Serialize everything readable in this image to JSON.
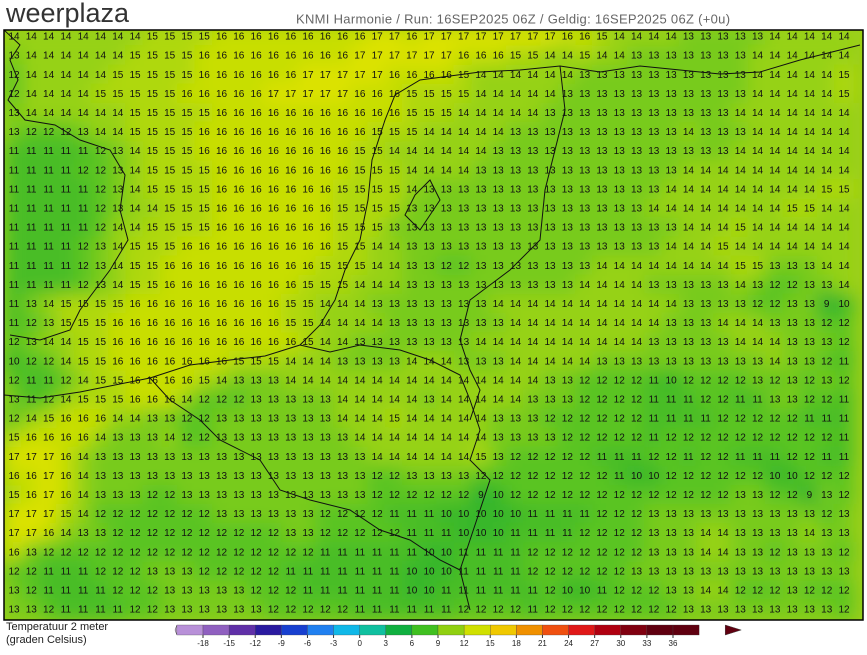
{
  "header": {
    "logo": "weerplaza",
    "info": "KNMI Harmonie / Run: 16SEP2025 06Z / Geldig: 16SEP2025 06Z (+0u)"
  },
  "map": {
    "rows": [
      [
        14,
        14,
        14,
        14,
        14,
        14,
        14,
        14,
        15,
        15,
        15,
        15,
        16,
        16,
        16,
        16,
        16,
        16,
        16,
        16,
        16,
        17,
        17,
        16,
        17,
        17,
        17,
        17,
        17,
        17,
        17,
        17,
        16,
        16,
        15,
        14,
        14,
        14,
        14,
        13,
        13,
        13,
        13,
        13,
        14,
        14,
        14,
        14,
        14
      ],
      [
        13,
        14,
        14,
        14,
        14,
        14,
        14,
        15,
        15,
        15,
        15,
        16,
        16,
        16,
        16,
        16,
        16,
        16,
        16,
        16,
        17,
        17,
        17,
        17,
        17,
        17,
        16,
        16,
        16,
        15,
        15,
        14,
        14,
        15,
        14,
        14,
        13,
        13,
        13,
        13,
        13,
        13,
        13,
        14,
        14,
        14,
        14,
        14,
        14
      ],
      [
        12,
        14,
        14,
        14,
        14,
        14,
        15,
        15,
        15,
        15,
        15,
        16,
        16,
        16,
        16,
        16,
        16,
        17,
        17,
        17,
        17,
        17,
        16,
        16,
        16,
        16,
        15,
        14,
        14,
        14,
        14,
        14,
        14,
        13,
        13,
        13,
        13,
        13,
        13,
        13,
        13,
        13,
        13,
        14,
        14,
        14,
        14,
        14,
        15
      ],
      [
        12,
        14,
        14,
        14,
        14,
        15,
        15,
        15,
        15,
        15,
        16,
        16,
        16,
        16,
        16,
        17,
        17,
        17,
        17,
        17,
        16,
        16,
        16,
        15,
        15,
        15,
        15,
        14,
        14,
        14,
        14,
        14,
        13,
        13,
        13,
        13,
        13,
        13,
        13,
        13,
        13,
        13,
        13,
        14,
        14,
        14,
        14,
        14,
        15
      ],
      [
        13,
        14,
        14,
        14,
        14,
        14,
        14,
        15,
        15,
        15,
        15,
        15,
        16,
        16,
        16,
        16,
        16,
        16,
        16,
        16,
        16,
        16,
        16,
        15,
        15,
        15,
        14,
        14,
        14,
        14,
        14,
        13,
        13,
        13,
        13,
        13,
        13,
        13,
        13,
        13,
        13,
        13,
        14,
        14,
        14,
        14,
        14,
        14,
        14
      ],
      [
        13,
        12,
        12,
        12,
        13,
        14,
        14,
        15,
        15,
        15,
        15,
        16,
        16,
        16,
        16,
        16,
        16,
        16,
        16,
        16,
        16,
        15,
        15,
        15,
        14,
        14,
        14,
        14,
        14,
        13,
        13,
        13,
        13,
        13,
        13,
        13,
        13,
        13,
        13,
        14,
        13,
        13,
        13,
        14,
        14,
        14,
        14,
        14,
        14
      ],
      [
        11,
        11,
        11,
        11,
        11,
        12,
        13,
        14,
        15,
        15,
        15,
        16,
        16,
        16,
        16,
        16,
        16,
        16,
        16,
        16,
        15,
        15,
        14,
        14,
        14,
        14,
        14,
        14,
        13,
        13,
        13,
        13,
        13,
        13,
        13,
        13,
        13,
        13,
        13,
        13,
        13,
        13,
        14,
        14,
        14,
        14,
        14,
        14,
        14
      ],
      [
        11,
        11,
        11,
        11,
        12,
        12,
        13,
        14,
        15,
        15,
        15,
        15,
        16,
        16,
        16,
        16,
        16,
        16,
        16,
        16,
        15,
        15,
        15,
        14,
        14,
        14,
        14,
        13,
        13,
        13,
        13,
        13,
        13,
        13,
        13,
        13,
        13,
        13,
        13,
        14,
        14,
        14,
        14,
        14,
        14,
        14,
        14,
        14,
        14
      ],
      [
        11,
        11,
        11,
        11,
        11,
        12,
        13,
        14,
        15,
        15,
        15,
        15,
        16,
        16,
        16,
        16,
        16,
        16,
        16,
        15,
        15,
        15,
        15,
        14,
        13,
        13,
        13,
        13,
        13,
        13,
        13,
        13,
        13,
        13,
        13,
        13,
        13,
        13,
        14,
        14,
        14,
        14,
        14,
        14,
        14,
        14,
        14,
        15,
        15
      ],
      [
        11,
        11,
        11,
        11,
        11,
        12,
        13,
        14,
        14,
        15,
        15,
        15,
        16,
        16,
        16,
        16,
        16,
        16,
        16,
        15,
        15,
        15,
        15,
        13,
        13,
        13,
        13,
        13,
        13,
        13,
        13,
        13,
        13,
        13,
        13,
        13,
        13,
        14,
        14,
        14,
        14,
        14,
        14,
        14,
        14,
        15,
        15,
        14,
        14
      ],
      [
        11,
        11,
        11,
        11,
        11,
        12,
        14,
        14,
        15,
        15,
        15,
        15,
        16,
        16,
        16,
        16,
        16,
        16,
        16,
        15,
        15,
        15,
        13,
        13,
        13,
        13,
        13,
        13,
        13,
        13,
        13,
        13,
        13,
        13,
        13,
        13,
        13,
        13,
        13,
        14,
        14,
        14,
        15,
        14,
        14,
        14,
        14,
        14,
        14
      ],
      [
        11,
        11,
        11,
        11,
        12,
        13,
        14,
        15,
        15,
        15,
        16,
        16,
        16,
        16,
        16,
        16,
        16,
        16,
        16,
        15,
        15,
        14,
        14,
        13,
        13,
        13,
        13,
        13,
        13,
        13,
        13,
        13,
        13,
        13,
        13,
        13,
        13,
        13,
        14,
        14,
        14,
        15,
        14,
        14,
        14,
        14,
        14,
        14,
        14
      ],
      [
        11,
        11,
        11,
        11,
        12,
        13,
        14,
        15,
        15,
        16,
        16,
        16,
        16,
        16,
        16,
        16,
        16,
        16,
        15,
        15,
        15,
        14,
        14,
        13,
        13,
        12,
        12,
        13,
        13,
        13,
        13,
        13,
        13,
        13,
        14,
        14,
        14,
        14,
        14,
        14,
        14,
        14,
        15,
        15,
        13,
        13,
        13,
        14,
        14
      ],
      [
        11,
        11,
        11,
        11,
        12,
        13,
        14,
        15,
        15,
        16,
        16,
        16,
        16,
        16,
        16,
        16,
        16,
        15,
        15,
        15,
        14,
        14,
        14,
        13,
        13,
        13,
        13,
        13,
        13,
        13,
        13,
        13,
        13,
        14,
        14,
        14,
        14,
        13,
        13,
        13,
        13,
        13,
        14,
        13,
        12,
        12,
        13,
        13,
        14
      ],
      [
        11,
        13,
        14,
        15,
        15,
        15,
        15,
        16,
        16,
        16,
        16,
        16,
        16,
        16,
        16,
        16,
        15,
        15,
        14,
        14,
        14,
        13,
        13,
        13,
        13,
        13,
        13,
        13,
        14,
        14,
        14,
        14,
        14,
        14,
        14,
        14,
        14,
        14,
        14,
        13,
        13,
        13,
        13,
        12,
        12,
        13,
        13,
        9,
        10
      ],
      [
        11,
        12,
        13,
        15,
        15,
        15,
        16,
        16,
        16,
        16,
        16,
        16,
        16,
        16,
        16,
        16,
        15,
        15,
        14,
        14,
        14,
        14,
        13,
        13,
        13,
        13,
        13,
        13,
        13,
        14,
        14,
        14,
        14,
        14,
        14,
        14,
        14,
        14,
        13,
        13,
        13,
        14,
        14,
        14,
        13,
        13,
        13,
        12,
        12
      ],
      [
        12,
        13,
        14,
        14,
        15,
        15,
        16,
        16,
        16,
        16,
        16,
        16,
        16,
        16,
        16,
        16,
        16,
        15,
        14,
        14,
        13,
        13,
        13,
        13,
        13,
        13,
        13,
        14,
        14,
        14,
        14,
        14,
        14,
        14,
        14,
        14,
        14,
        13,
        13,
        13,
        13,
        13,
        14,
        14,
        14,
        13,
        13,
        13,
        12
      ],
      [
        10,
        12,
        12,
        14,
        15,
        15,
        16,
        16,
        16,
        16,
        16,
        16,
        16,
        15,
        15,
        15,
        14,
        14,
        14,
        13,
        13,
        13,
        13,
        14,
        14,
        14,
        13,
        13,
        13,
        14,
        14,
        14,
        14,
        14,
        13,
        13,
        13,
        13,
        13,
        13,
        13,
        13,
        13,
        13,
        14,
        13,
        13,
        12,
        11
      ],
      [
        12,
        11,
        11,
        12,
        14,
        15,
        15,
        16,
        16,
        16,
        16,
        15,
        14,
        13,
        13,
        13,
        14,
        14,
        14,
        14,
        14,
        14,
        14,
        14,
        14,
        14,
        14,
        14,
        14,
        14,
        14,
        13,
        13,
        12,
        12,
        12,
        12,
        11,
        10,
        12,
        12,
        12,
        12,
        13,
        12,
        13,
        12,
        13,
        12
      ],
      [
        13,
        11,
        12,
        14,
        15,
        15,
        15,
        16,
        16,
        16,
        14,
        12,
        12,
        12,
        13,
        13,
        13,
        13,
        13,
        14,
        14,
        14,
        14,
        14,
        13,
        14,
        14,
        14,
        14,
        14,
        13,
        13,
        13,
        12,
        12,
        12,
        12,
        11,
        11,
        11,
        12,
        12,
        11,
        11,
        13,
        13,
        12,
        12,
        11
      ],
      [
        12,
        14,
        15,
        16,
        16,
        16,
        14,
        14,
        13,
        13,
        12,
        12,
        13,
        13,
        13,
        13,
        13,
        13,
        13,
        14,
        14,
        14,
        15,
        14,
        14,
        14,
        14,
        14,
        13,
        13,
        13,
        12,
        12,
        12,
        12,
        12,
        12,
        11,
        11,
        11,
        11,
        12,
        12,
        12,
        12,
        12,
        11,
        11,
        11
      ],
      [
        15,
        16,
        16,
        16,
        16,
        14,
        13,
        13,
        13,
        14,
        12,
        12,
        13,
        13,
        13,
        13,
        13,
        13,
        13,
        13,
        14,
        14,
        14,
        14,
        14,
        14,
        14,
        14,
        13,
        13,
        13,
        13,
        12,
        12,
        12,
        12,
        12,
        11,
        12,
        12,
        12,
        12,
        12,
        12,
        12,
        12,
        12,
        12,
        11
      ],
      [
        17,
        17,
        17,
        16,
        14,
        13,
        13,
        13,
        13,
        13,
        13,
        13,
        13,
        13,
        13,
        13,
        13,
        13,
        13,
        13,
        13,
        14,
        14,
        14,
        14,
        14,
        14,
        15,
        13,
        12,
        12,
        12,
        12,
        12,
        11,
        11,
        11,
        12,
        12,
        11,
        12,
        12,
        11,
        11,
        11,
        12,
        12,
        11,
        11
      ],
      [
        16,
        16,
        17,
        16,
        14,
        13,
        13,
        13,
        13,
        13,
        13,
        13,
        13,
        13,
        13,
        13,
        13,
        13,
        13,
        13,
        13,
        12,
        12,
        13,
        13,
        13,
        13,
        12,
        12,
        12,
        12,
        12,
        12,
        12,
        12,
        11,
        10,
        10,
        12,
        12,
        12,
        12,
        12,
        12,
        10,
        10,
        12,
        12,
        12
      ],
      [
        15,
        16,
        17,
        16,
        14,
        13,
        13,
        13,
        12,
        12,
        13,
        13,
        13,
        13,
        13,
        13,
        13,
        13,
        13,
        13,
        13,
        12,
        12,
        12,
        12,
        12,
        12,
        9,
        10,
        12,
        12,
        12,
        12,
        12,
        12,
        12,
        12,
        12,
        12,
        12,
        12,
        12,
        13,
        13,
        12,
        12,
        9,
        13,
        12
      ],
      [
        17,
        17,
        17,
        15,
        14,
        12,
        12,
        12,
        12,
        12,
        12,
        12,
        13,
        13,
        13,
        13,
        13,
        13,
        12,
        12,
        12,
        12,
        11,
        11,
        11,
        10,
        10,
        10,
        10,
        10,
        11,
        11,
        11,
        11,
        12,
        12,
        12,
        13,
        13,
        13,
        13,
        13,
        13,
        13,
        13,
        13,
        13,
        12,
        13
      ],
      [
        17,
        17,
        16,
        14,
        13,
        13,
        12,
        12,
        12,
        12,
        12,
        12,
        12,
        12,
        12,
        12,
        13,
        13,
        12,
        12,
        12,
        12,
        12,
        11,
        11,
        11,
        10,
        10,
        10,
        11,
        11,
        11,
        11,
        12,
        12,
        12,
        12,
        13,
        13,
        13,
        14,
        14,
        13,
        13,
        13,
        13,
        14,
        13,
        13
      ],
      [
        16,
        13,
        12,
        12,
        12,
        12,
        12,
        12,
        12,
        12,
        12,
        12,
        12,
        12,
        12,
        12,
        12,
        12,
        11,
        11,
        11,
        11,
        11,
        11,
        10,
        10,
        11,
        11,
        11,
        11,
        12,
        12,
        12,
        12,
        12,
        12,
        12,
        13,
        13,
        13,
        14,
        14,
        13,
        13,
        12,
        13,
        13,
        13,
        12
      ],
      [
        12,
        12,
        11,
        11,
        11,
        12,
        12,
        12,
        13,
        13,
        13,
        12,
        12,
        12,
        12,
        12,
        11,
        11,
        11,
        11,
        11,
        11,
        11,
        10,
        10,
        10,
        11,
        11,
        11,
        11,
        12,
        12,
        12,
        12,
        12,
        12,
        13,
        13,
        13,
        13,
        13,
        13,
        13,
        13,
        13,
        13,
        13,
        13,
        13
      ],
      [
        13,
        12,
        11,
        11,
        11,
        11,
        12,
        12,
        12,
        13,
        13,
        13,
        13,
        13,
        12,
        12,
        12,
        11,
        11,
        11,
        11,
        11,
        11,
        10,
        10,
        11,
        11,
        11,
        11,
        11,
        11,
        12,
        10,
        10,
        11,
        12,
        12,
        12,
        13,
        13,
        14,
        14,
        12,
        12,
        12,
        13,
        12,
        12,
        12
      ],
      [
        13,
        13,
        12,
        11,
        11,
        11,
        11,
        12,
        12,
        13,
        13,
        13,
        13,
        13,
        13,
        12,
        12,
        12,
        12,
        12,
        11,
        11,
        11,
        11,
        11,
        11,
        12,
        12,
        12,
        12,
        11,
        12,
        12,
        12,
        12,
        12,
        12,
        12,
        12,
        13,
        13,
        13,
        13,
        13,
        13,
        13,
        13,
        13,
        12
      ]
    ]
  },
  "legend": {
    "label_line1": "Temperatuur 2 meter",
    "label_line2": "(graden Celsius)",
    "ticks": [
      -18,
      -15,
      -12,
      -9,
      -6,
      -3,
      0,
      3,
      6,
      9,
      12,
      15,
      18,
      21,
      24,
      27,
      30,
      33,
      36
    ]
  }
}
